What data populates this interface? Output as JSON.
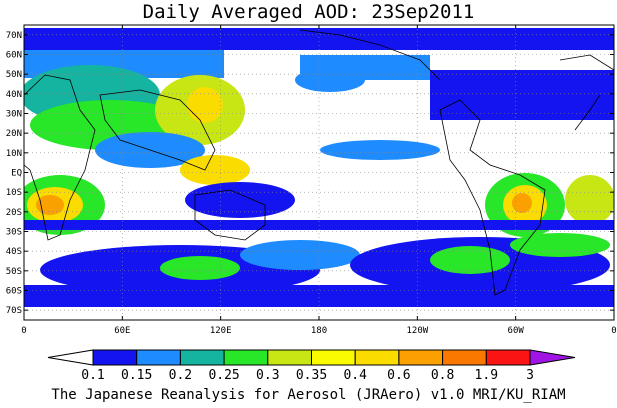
{
  "title": "Daily Averaged AOD: 23Sep2011",
  "footer": "The Japanese Reanalysis for Aerosol (JRAero) v1.0 MRI/KU_RIAM",
  "map": {
    "lon_range": [
      0,
      360
    ],
    "lat_range": [
      -75,
      75
    ],
    "grid": "dotted",
    "lat_ticks": [
      "70N",
      "60N",
      "50N",
      "40N",
      "30N",
      "20N",
      "10N",
      "EQ",
      "10S",
      "20S",
      "30S",
      "40S",
      "50S",
      "60S",
      "70S"
    ],
    "lat_values": [
      70,
      60,
      50,
      40,
      30,
      20,
      10,
      0,
      -10,
      -20,
      -30,
      -40,
      -50,
      -60,
      -70
    ],
    "lon_ticks": [
      "0",
      "60E",
      "120E",
      "180",
      "120W",
      "60W",
      "0"
    ],
    "lon_values": [
      0,
      60,
      120,
      180,
      240,
      300,
      360
    ]
  },
  "colorbar": {
    "labels": [
      "0.1",
      "0.15",
      "0.2",
      "0.25",
      "0.3",
      "0.35",
      "0.4",
      "0.6",
      "0.8",
      "1.9",
      "3"
    ],
    "colors": [
      "#ffffff",
      "#1414f0",
      "#1e8cff",
      "#14b4a0",
      "#28e628",
      "#c8e614",
      "#fafa00",
      "#fadc00",
      "#faa000",
      "#fa7800",
      "#fa1414",
      "#a014e6"
    ]
  }
}
